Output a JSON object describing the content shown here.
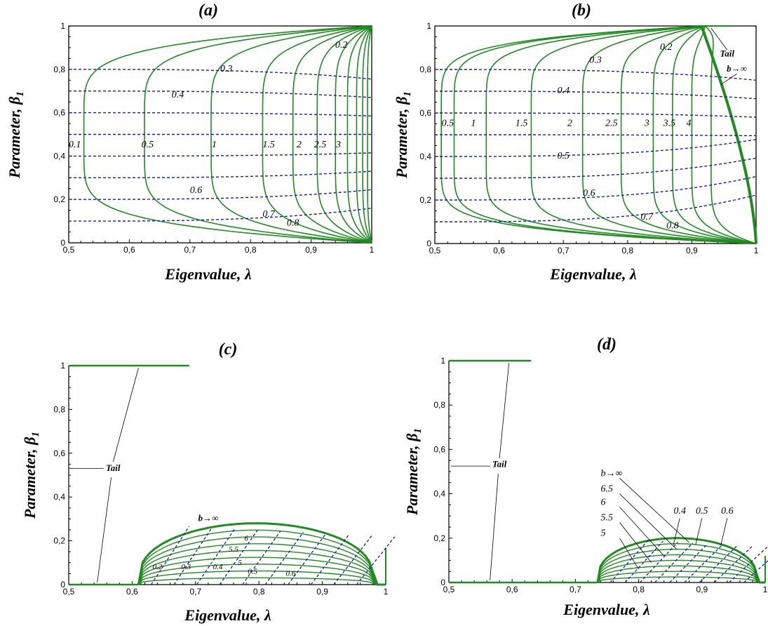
{
  "panels": [
    {
      "id": "a",
      "title": "(a)",
      "xlabel": "Eigenvalue, λ",
      "ylabel": "Parameter, β",
      "ylabel_sub": "1",
      "xticks": [
        "0,5",
        "0,6",
        "0,7",
        "0,8",
        "0,9",
        "1"
      ],
      "yticks": [
        "0",
        "0,2",
        "0,4",
        "0,6",
        "0,8",
        "1"
      ],
      "b_labels": [
        "0.5",
        "1",
        "1.5",
        "2",
        "2.5",
        "3"
      ],
      "beta_labels": [
        "0.1",
        "0.2",
        "0.3",
        "0.4",
        "0.6",
        "0.7",
        "0.8"
      ]
    },
    {
      "id": "b",
      "title": "(b)",
      "xlabel": "Eigenvalue, λ",
      "ylabel": "Parameter, β",
      "ylabel_sub": "1",
      "xticks": [
        "0,5",
        "0,6",
        "0,7",
        "0,8",
        "0,9",
        "1"
      ],
      "yticks": [
        "0",
        "0,2",
        "0,4",
        "0,6",
        "0,8",
        "1"
      ],
      "b_labels": [
        "0.5",
        "1",
        "1.5",
        "2",
        "2.5",
        "3",
        "3.5",
        "4"
      ],
      "beta_labels": [
        "0.2",
        "0.3",
        "0.4",
        "0.5",
        "0.6",
        "0.7",
        "0.8"
      ],
      "annotations": [
        "Tail",
        "b→∞"
      ]
    },
    {
      "id": "c",
      "title": "(c)",
      "xlabel": "Eigenvalue, λ",
      "ylabel": "Parameter, β",
      "ylabel_sub": "1",
      "xticks": [
        "0,5",
        "0,6",
        "0,7",
        "0,8",
        "0,9",
        "1"
      ],
      "yticks": [
        "0",
        "0,2",
        "0,4",
        "0,6",
        "0,8",
        "1"
      ],
      "b_labels": [
        "5",
        "5.5",
        "6"
      ],
      "beta_labels": [
        "0.2",
        "0.3",
        "0.4",
        "0.5",
        "0.6"
      ],
      "annotations": [
        "Tail",
        "b→∞"
      ]
    },
    {
      "id": "d",
      "title": "(d)",
      "xlabel": "Eigenvalue, λ",
      "ylabel": "Parameter, β",
      "ylabel_sub": "1",
      "xticks": [
        "0,5",
        "0,6",
        "0,7",
        "0,8",
        "0,9",
        "1"
      ],
      "yticks": [
        "0",
        "0,2",
        "0,4",
        "0,6",
        "0,8",
        "1"
      ],
      "b_labels": [
        "b→∞",
        "6.5",
        "6",
        "5.5",
        "5"
      ],
      "beta_labels": [
        "0.4",
        "0.5",
        "0.6"
      ],
      "annotations": [
        "Tail"
      ]
    }
  ],
  "chart_data": [
    {
      "type": "line",
      "panel": "a",
      "xlim": [
        0.5,
        1
      ],
      "ylim": [
        0,
        1
      ],
      "solid_color": "#1e8c1e",
      "dashed_color": "#1a1aa6",
      "solid_family_left_x_at_beta_half": [
        0.525,
        0.625,
        0.735,
        0.82,
        0.87,
        0.91,
        0.94,
        0.96,
        0.975,
        0.985,
        0.993
      ],
      "dashed_beta_levels": [
        0.1,
        0.2,
        0.3,
        0.4,
        0.5,
        0.6,
        0.7,
        0.8
      ]
    },
    {
      "type": "line",
      "panel": "b",
      "xlim": [
        0.5,
        1
      ],
      "ylim": [
        0,
        1
      ],
      "solid_family_left_x_at_beta_half": [
        0.51,
        0.53,
        0.58,
        0.65,
        0.73,
        0.79,
        0.84,
        0.87,
        0.9,
        0.93
      ],
      "envelope_b_inf": "from (0.92,1) to (1,0)"
    },
    {
      "type": "line",
      "panel": "c",
      "xlim": [
        0.5,
        1
      ],
      "ylim": [
        0,
        1
      ],
      "tail_segment": {
        "x": [
          0.5,
          0.69
        ],
        "y": 1
      },
      "region": {
        "x": [
          0.61,
          1
        ],
        "beta_max": 0.28
      }
    },
    {
      "type": "line",
      "panel": "d",
      "xlim": [
        0.5,
        1
      ],
      "ylim": [
        0,
        1
      ],
      "tail_segment": {
        "x": [
          0.5,
          0.63
        ],
        "y": 1
      },
      "region": {
        "x": [
          0.735,
          1
        ],
        "beta_max": 0.2
      }
    }
  ]
}
